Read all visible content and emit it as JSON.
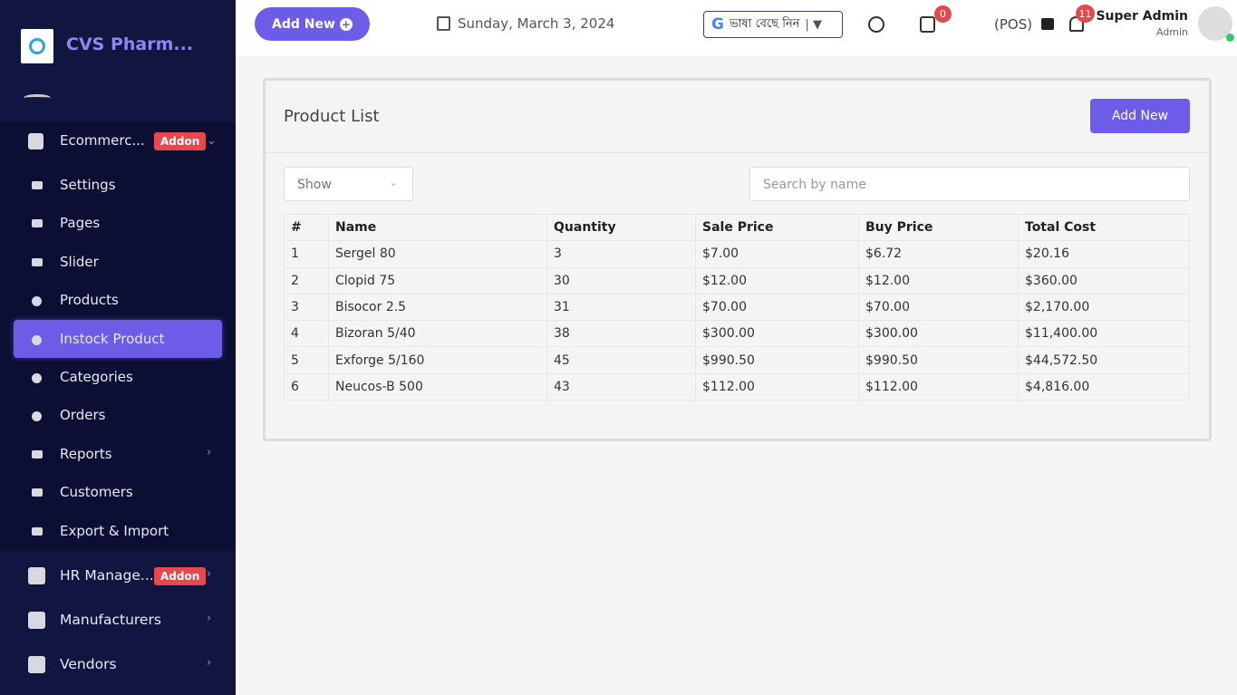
{
  "sidebar": {
    "brand": "CVS Pharm...",
    "group": {
      "label": "Ecommerc...",
      "badge": "Addon"
    },
    "submenu": [
      "Settings",
      "Pages",
      "Slider",
      "Products",
      "Instock Product",
      "Categories",
      "Orders",
      "Reports",
      "Customers",
      "Export & Import"
    ],
    "menu": [
      {
        "label": "HR Manage...",
        "badge": "Addon"
      },
      {
        "label": "Manufacturers"
      },
      {
        "label": "Vendors"
      }
    ]
  },
  "header": {
    "add_new": "Add New",
    "date": "Sunday, March 3, 2024",
    "language": "ভাষা বেছে নিন",
    "cart_count": 0,
    "pos": "(POS)",
    "notification_count": 11,
    "user_name": "Super Admin",
    "user_role": "Admin"
  },
  "card": {
    "title": "Product List",
    "add_new": "Add New",
    "show": "Show",
    "search_placeholder": "Search by name"
  },
  "table": {
    "columns": [
      "#",
      "Name",
      "Quantity",
      "Sale Price",
      "Buy Price",
      "Total Cost"
    ],
    "rows": [
      [
        "1",
        "Sergel 80",
        "3",
        "$7.00",
        "$6.72",
        "$20.16"
      ],
      [
        "2",
        "Clopid 75",
        "30",
        "$12.00",
        "$12.00",
        "$360.00"
      ],
      [
        "3",
        "Bisocor 2.5",
        "31",
        "$70.00",
        "$70.00",
        "$2,170.00"
      ],
      [
        "4",
        "Bizoran 5/40",
        "38",
        "$300.00",
        "$300.00",
        "$11,400.00"
      ],
      [
        "5",
        "Exforge 5/160",
        "45",
        "$990.50",
        "$990.50",
        "$44,572.50"
      ],
      [
        "6",
        "Neucos-B 500",
        "43",
        "$112.00",
        "$112.00",
        "$4,816.00"
      ]
    ]
  }
}
